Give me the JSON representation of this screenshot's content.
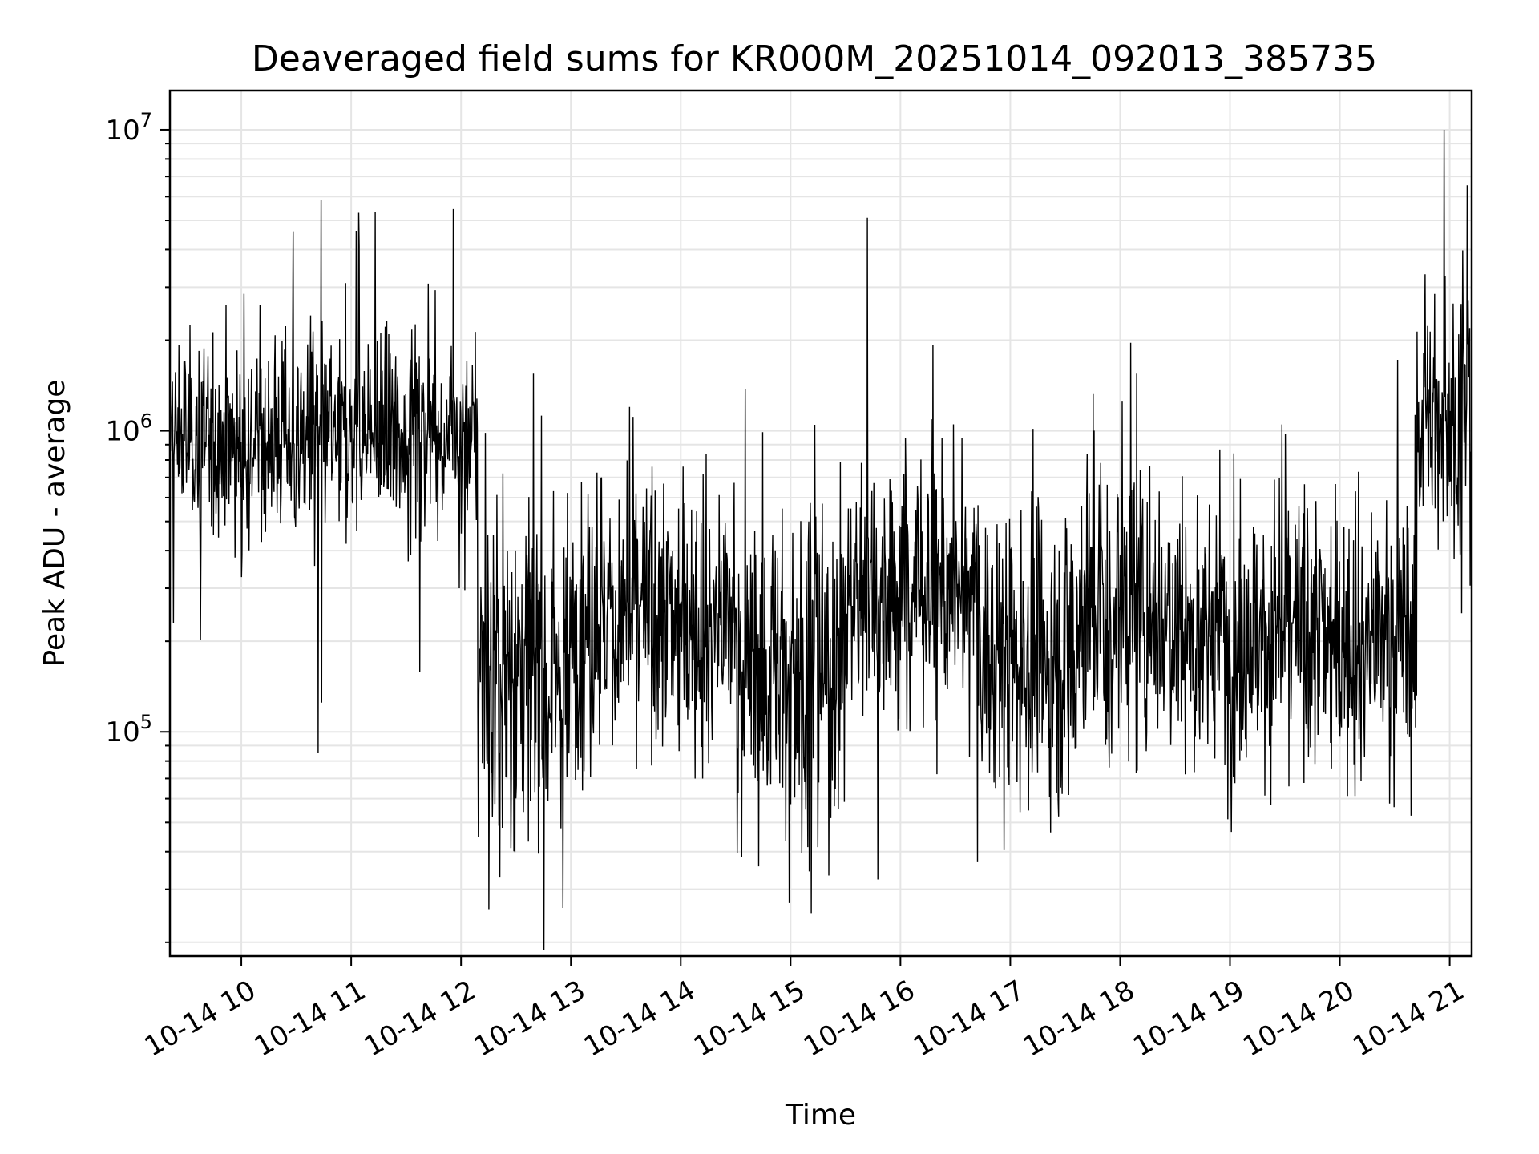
{
  "chart_data": {
    "type": "line",
    "title": "Deaveraged field sums for KR000M_20251014_092013_385735",
    "xlabel": "Time",
    "ylabel": "Peak ADU - average",
    "yscale": "log",
    "xlim_hours": [
      9.35,
      21.2
    ],
    "ylim": [
      18000,
      13500000
    ],
    "grid": true,
    "x_ticks": [
      {
        "hour": 10,
        "label": "10-14 10"
      },
      {
        "hour": 11,
        "label": "10-14 11"
      },
      {
        "hour": 12,
        "label": "10-14 12"
      },
      {
        "hour": 13,
        "label": "10-14 13"
      },
      {
        "hour": 14,
        "label": "10-14 14"
      },
      {
        "hour": 15,
        "label": "10-14 15"
      },
      {
        "hour": 16,
        "label": "10-14 16"
      },
      {
        "hour": 17,
        "label": "10-14 17"
      },
      {
        "hour": 18,
        "label": "10-14 18"
      },
      {
        "hour": 19,
        "label": "10-14 19"
      },
      {
        "hour": 20,
        "label": "10-14 20"
      },
      {
        "hour": 21,
        "label": "10-14 21"
      }
    ],
    "y_ticks": [
      {
        "value": 100000,
        "base": "10",
        "exp": "5"
      },
      {
        "value": 1000000,
        "base": "10",
        "exp": "6"
      },
      {
        "value": 10000000,
        "base": "10",
        "exp": "7"
      }
    ],
    "series": [
      {
        "name": "deaveraged field sums",
        "color": "#000000",
        "segments": [
          {
            "start": 9.35,
            "end": 12.15,
            "median": 950000,
            "spread": 0.16
          },
          {
            "start": 12.15,
            "end": 13.0,
            "median": 160000,
            "spread": 0.28
          },
          {
            "start": 13.0,
            "end": 14.5,
            "median": 240000,
            "spread": 0.24
          },
          {
            "start": 14.5,
            "end": 15.5,
            "median": 160000,
            "spread": 0.26
          },
          {
            "start": 15.5,
            "end": 16.7,
            "median": 300000,
            "spread": 0.22
          },
          {
            "start": 16.7,
            "end": 17.6,
            "median": 180000,
            "spread": 0.26
          },
          {
            "start": 17.6,
            "end": 18.6,
            "median": 260000,
            "spread": 0.24
          },
          {
            "start": 18.6,
            "end": 20.7,
            "median": 210000,
            "spread": 0.24
          },
          {
            "start": 20.7,
            "end": 21.2,
            "median": 1100000,
            "spread": 0.2
          }
        ],
        "peaks": [
          {
            "hour": 10.47,
            "value": 4600000
          },
          {
            "hour": 11.07,
            "value": 5300000
          },
          {
            "hour": 15.7,
            "value": 5100000
          },
          {
            "hour": 20.95,
            "value": 10000000
          },
          {
            "hour": 10.7,
            "value": 85000
          },
          {
            "hour": 10.73,
            "value": 125000
          },
          {
            "hour": 12.93,
            "value": 26000
          },
          {
            "hour": 15.19,
            "value": 25000
          },
          {
            "hour": 14.99,
            "value": 27000
          }
        ]
      }
    ]
  }
}
